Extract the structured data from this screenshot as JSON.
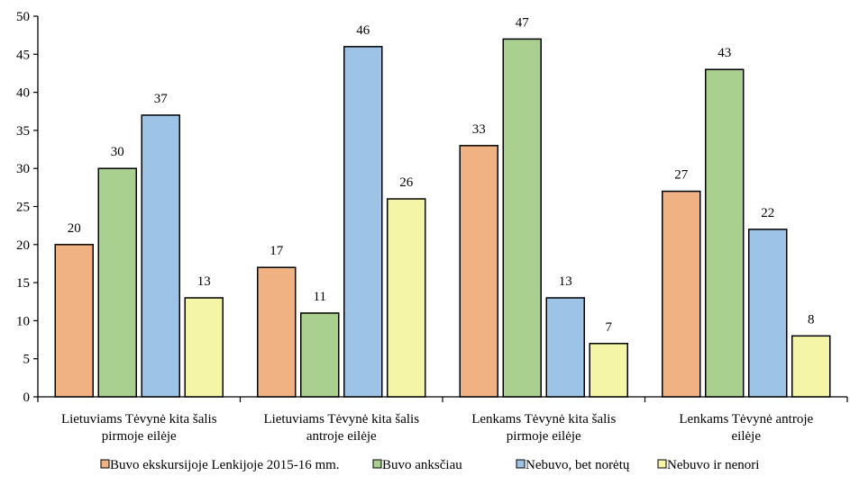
{
  "chart_data": {
    "type": "bar",
    "categories": [
      [
        "Lietuviams Tėvynė kita šalis",
        "pirmoje eilėje"
      ],
      [
        "Lietuviams Tėvynė kita šalis",
        "antroje eilėje"
      ],
      [
        "Lenkams Tėvynė kita šalis",
        "pirmoje eilėje"
      ],
      [
        "Lenkams Tėvynė antroje",
        "eilėje"
      ]
    ],
    "series": [
      {
        "name": "Buvo ekskursijoje Lenkijoje 2015-16 mm.",
        "color": "#f0b183",
        "values": [
          20,
          17,
          33,
          27
        ]
      },
      {
        "name": "Buvo anksčiau",
        "color": "#a9d08e",
        "values": [
          30,
          11,
          47,
          43
        ]
      },
      {
        "name": "Nebuvo, bet norėtų",
        "color": "#9dc3e6",
        "values": [
          37,
          46,
          13,
          22
        ]
      },
      {
        "name": "Nebuvo ir nenori",
        "color": "#f5f5a8",
        "values": [
          13,
          26,
          7,
          8
        ]
      }
    ],
    "ylim": [
      0,
      50
    ],
    "yticks": [
      "0",
      "5",
      "10",
      "15",
      "20",
      "25",
      "30",
      "35",
      "40",
      "45",
      "50"
    ],
    "grid": false,
    "legend": "bottom",
    "title": "",
    "xlabel": "",
    "ylabel": ""
  }
}
